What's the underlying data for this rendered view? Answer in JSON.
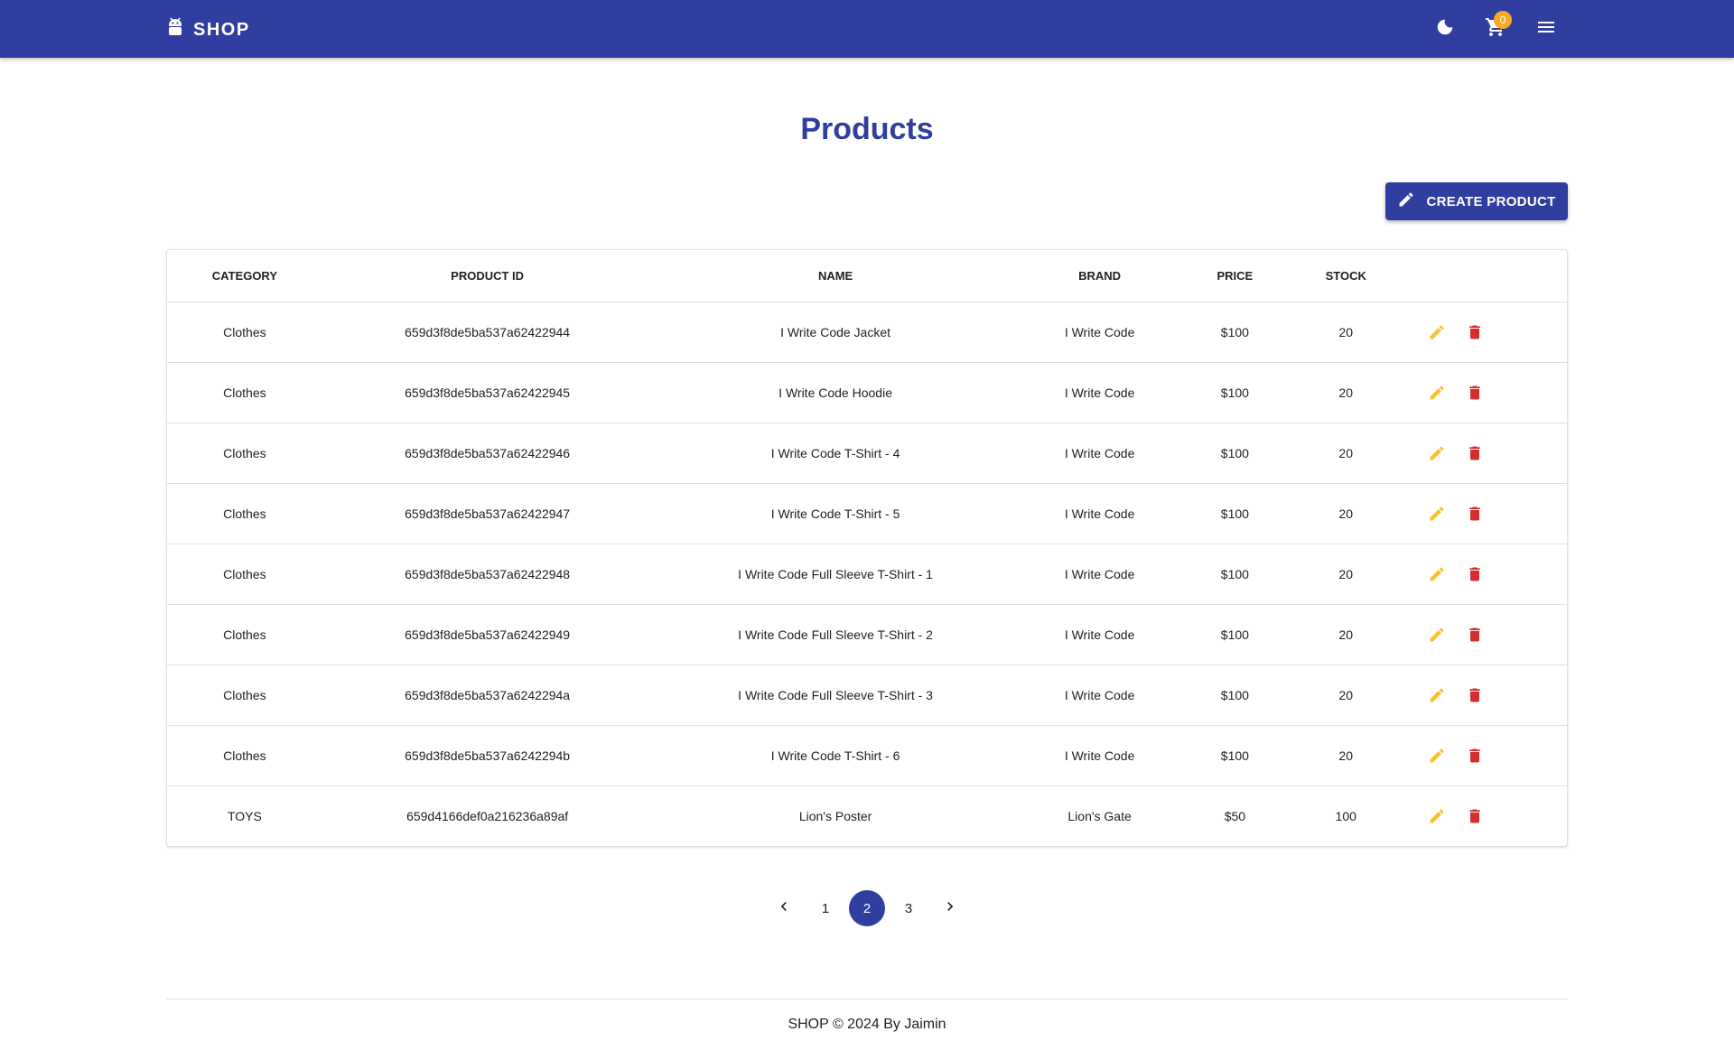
{
  "header": {
    "brand": "SHOP",
    "cart_count": "0",
    "colors": {
      "primary": "#303f9f",
      "badge": "#f9a825"
    },
    "icons": [
      "android-icon",
      "dark-mode-moon-icon",
      "cart-icon",
      "menu-icon"
    ]
  },
  "main": {
    "title": "Products",
    "create_button": "CREATE PRODUCT"
  },
  "table": {
    "columns": [
      "CATEGORY",
      "PRODUCT ID",
      "NAME",
      "BRAND",
      "PRICE",
      "STOCK",
      ""
    ],
    "rows": [
      {
        "category": "Clothes",
        "id": "659d3f8de5ba537a62422944",
        "name": "I Write Code Jacket",
        "brand": "I Write Code",
        "price": "$100",
        "stock": "20"
      },
      {
        "category": "Clothes",
        "id": "659d3f8de5ba537a62422945",
        "name": "I Write Code Hoodie",
        "brand": "I Write Code",
        "price": "$100",
        "stock": "20"
      },
      {
        "category": "Clothes",
        "id": "659d3f8de5ba537a62422946",
        "name": "I Write Code T-Shirt - 4",
        "brand": "I Write Code",
        "price": "$100",
        "stock": "20"
      },
      {
        "category": "Clothes",
        "id": "659d3f8de5ba537a62422947",
        "name": "I Write Code T-Shirt - 5",
        "brand": "I Write Code",
        "price": "$100",
        "stock": "20"
      },
      {
        "category": "Clothes",
        "id": "659d3f8de5ba537a62422948",
        "name": "I Write Code Full Sleeve T-Shirt - 1",
        "brand": "I Write Code",
        "price": "$100",
        "stock": "20"
      },
      {
        "category": "Clothes",
        "id": "659d3f8de5ba537a62422949",
        "name": "I Write Code Full Sleeve T-Shirt - 2",
        "brand": "I Write Code",
        "price": "$100",
        "stock": "20"
      },
      {
        "category": "Clothes",
        "id": "659d3f8de5ba537a6242294a",
        "name": "I Write Code Full Sleeve T-Shirt - 3",
        "brand": "I Write Code",
        "price": "$100",
        "stock": "20"
      },
      {
        "category": "Clothes",
        "id": "659d3f8de5ba537a6242294b",
        "name": "I Write Code T-Shirt - 6",
        "brand": "I Write Code",
        "price": "$100",
        "stock": "20"
      },
      {
        "category": "TOYS",
        "id": "659d4166def0a216236a89af",
        "name": "Lion's Poster",
        "brand": "Lion's Gate",
        "price": "$50",
        "stock": "100"
      }
    ],
    "row_action_icons": [
      "edit-pencil-icon",
      "delete-trash-icon"
    ],
    "action_colors": {
      "edit": "#fbc02d",
      "delete": "#d32f2f"
    }
  },
  "pagination": {
    "pages": [
      "1",
      "2",
      "3"
    ],
    "current": "2"
  },
  "footer": {
    "text": "SHOP © 2024 By Jaimin"
  }
}
